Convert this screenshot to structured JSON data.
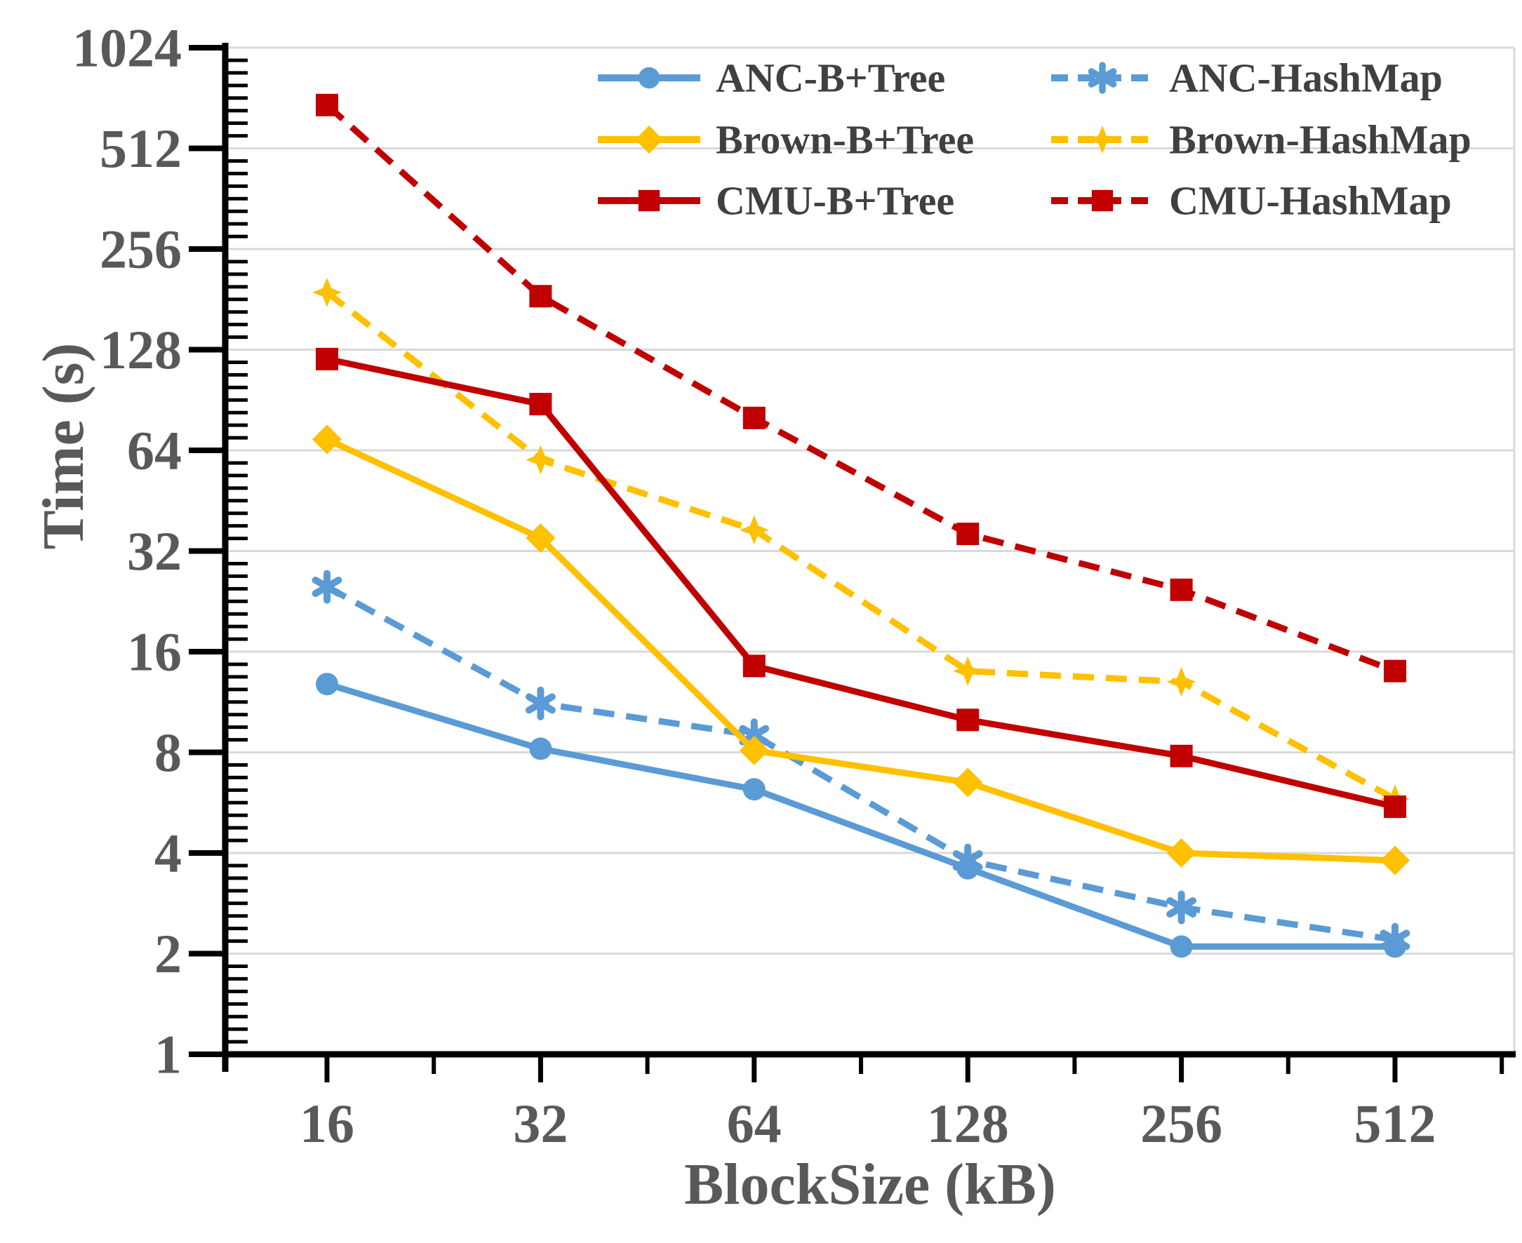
{
  "chart_data": {
    "type": "line",
    "title": "",
    "xlabel": "BlockSize (kB)",
    "ylabel": "Time (s)",
    "x_scale": "log2",
    "y_scale": "log2",
    "categories": [
      16,
      32,
      64,
      128,
      256,
      512
    ],
    "x_tick_labels": [
      "16",
      "32",
      "64",
      "128",
      "256",
      "512"
    ],
    "y_ticks": [
      1,
      2,
      4,
      8,
      16,
      32,
      64,
      128,
      256,
      512,
      1024
    ],
    "y_tick_labels": [
      "1",
      "2",
      "4",
      "8",
      "16",
      "32",
      "64",
      "128",
      "256",
      "512",
      "1024"
    ],
    "ylim": [
      1,
      1024
    ],
    "grid": "horizontal",
    "legend_position": "top-center, 2 columns",
    "colors": {
      "anc_blue": "#5B9BD5",
      "brown_yellow": "#FFC000",
      "cmu_red": "#C00000",
      "axis_line": "#000000",
      "tick_text": "#595959",
      "gridline": "#D9D9D9",
      "legend_text": "#404040"
    },
    "series": [
      {
        "name": "ANC-B+Tree",
        "color": "#5B9BD5",
        "line_style": "solid",
        "marker": "circle",
        "values": [
          12.8,
          8.2,
          6.2,
          3.6,
          2.1,
          2.1
        ]
      },
      {
        "name": "Brown-B+Tree",
        "color": "#FFC000",
        "line_style": "solid",
        "marker": "diamond",
        "values": [
          69,
          35,
          8.1,
          6.5,
          4.0,
          3.8
        ]
      },
      {
        "name": "CMU-B+Tree",
        "color": "#C00000",
        "line_style": "solid",
        "marker": "square",
        "values": [
          120,
          88,
          14.5,
          10,
          7.8,
          5.5
        ]
      },
      {
        "name": "ANC-HashMap",
        "color": "#5B9BD5",
        "line_style": "dashed",
        "marker": "star6",
        "values": [
          25,
          11.2,
          9.0,
          3.8,
          2.75,
          2.2
        ]
      },
      {
        "name": "Brown-HashMap",
        "color": "#FFC000",
        "line_style": "dashed",
        "marker": "star4",
        "values": [
          190,
          60,
          37,
          14,
          13,
          5.8
        ]
      },
      {
        "name": "CMU-HashMap",
        "color": "#C00000",
        "line_style": "dashed",
        "marker": "square",
        "values": [
          690,
          185,
          80,
          36,
          24.5,
          14
        ]
      }
    ],
    "legend_rows": [
      [
        "ANC-B+Tree",
        "ANC-HashMap"
      ],
      [
        "Brown-B+Tree",
        "Brown-HashMap"
      ],
      [
        "CMU-B+Tree",
        "CMU-HashMap"
      ]
    ]
  }
}
